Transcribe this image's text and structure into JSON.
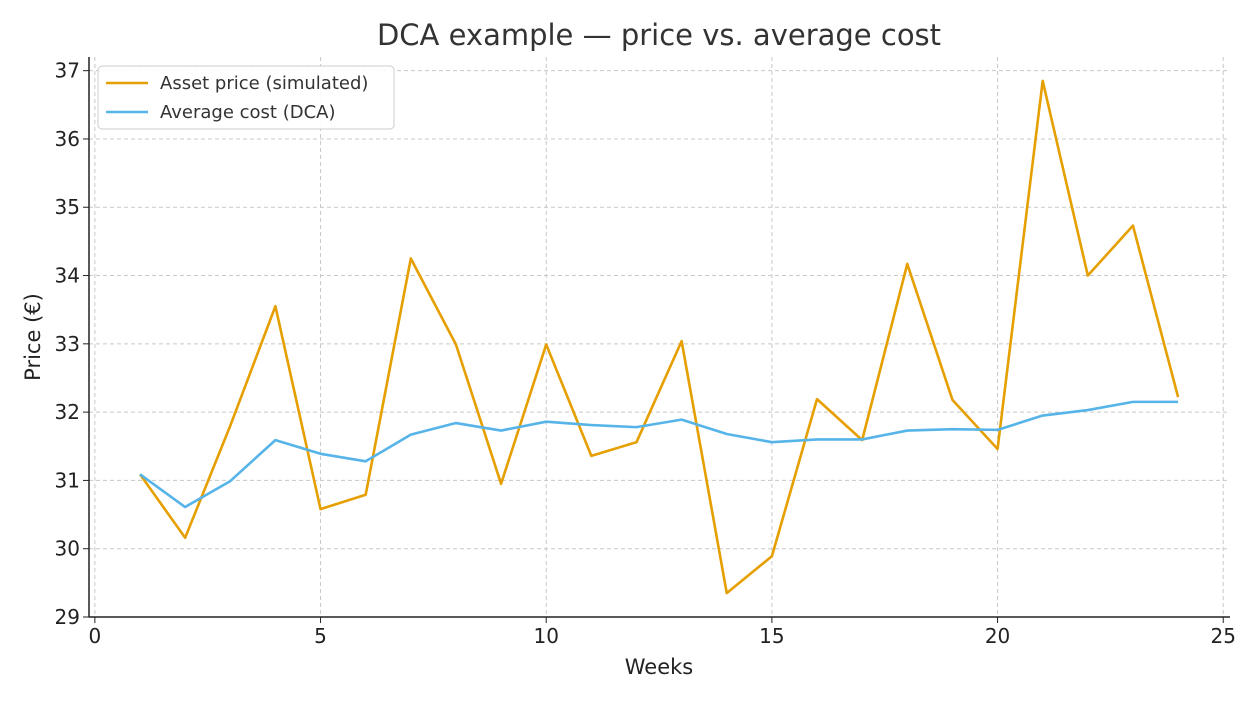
{
  "chart_data": {
    "type": "line",
    "title": "DCA example — price vs. average cost",
    "xlabel": "Weeks",
    "ylabel": "Price (€)",
    "xlim": [
      -0.13,
      25.15
    ],
    "ylim": [
      29,
      37.2
    ],
    "xticks": [
      0,
      5,
      10,
      15,
      20,
      25
    ],
    "yticks": [
      29,
      30,
      31,
      32,
      33,
      34,
      35,
      36,
      37
    ],
    "grid": true,
    "legend_position": "top-left",
    "x": [
      1,
      2,
      3,
      4,
      5,
      6,
      7,
      8,
      9,
      10,
      11,
      12,
      13,
      14,
      15,
      16,
      17,
      18,
      19,
      20,
      21,
      22,
      23,
      24
    ],
    "series": [
      {
        "name": "Asset price (simulated)",
        "color": "#E69F00",
        "values": [
          31.09,
          30.16,
          31.8,
          33.55,
          30.58,
          30.79,
          34.25,
          32.99,
          30.95,
          32.99,
          31.36,
          31.56,
          33.04,
          29.35,
          29.89,
          32.19,
          31.59,
          34.17,
          32.18,
          31.46,
          36.85,
          34.0,
          34.73,
          32.22
        ]
      },
      {
        "name": "Average cost (DCA)",
        "color": "#56B4E9",
        "values": [
          31.09,
          30.61,
          30.99,
          31.59,
          31.39,
          31.28,
          31.67,
          31.84,
          31.73,
          31.86,
          31.81,
          31.78,
          31.89,
          31.68,
          31.56,
          31.6,
          31.6,
          31.73,
          31.75,
          31.74,
          31.95,
          32.03,
          32.15,
          32.15
        ]
      }
    ]
  }
}
